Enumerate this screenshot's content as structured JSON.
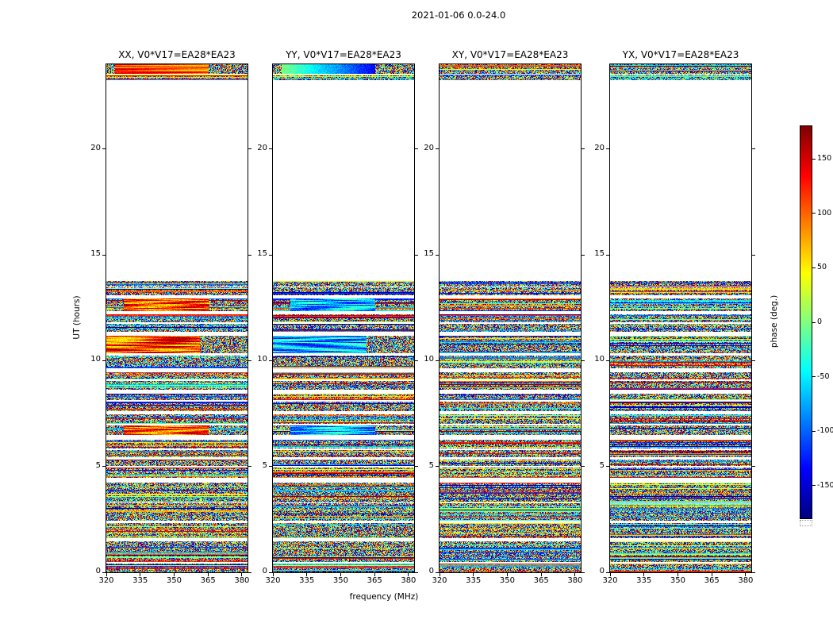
{
  "figure": {
    "title": "2021-01-06 0.0-24.0"
  },
  "axes": {
    "xlabel": "frequency (MHz)",
    "ylabel": "UT (hours)",
    "x_ticks": [
      320,
      335,
      350,
      365,
      380
    ],
    "y_ticks": [
      0,
      5,
      10,
      15,
      20
    ],
    "x_range": [
      320,
      382.5
    ],
    "y_range": [
      0,
      24
    ]
  },
  "colorbar": {
    "label": "phase (deg.)",
    "range": [
      -180,
      180
    ],
    "ticks": [
      -150,
      -100,
      -50,
      0,
      50,
      100,
      150
    ],
    "colormap": "jet"
  },
  "panels": [
    {
      "title": "XX, V0*V17=EA28*EA23",
      "pol": "XX",
      "bias": 0.8,
      "seed": 1
    },
    {
      "title": "YY, V0*V17=EA28*EA23",
      "pol": "YY",
      "bias": 0.3,
      "seed": 2
    },
    {
      "title": "XY, V0*V17=EA28*EA23",
      "pol": "XY",
      "bias": null,
      "seed": 3
    },
    {
      "title": "YX, V0*V17=EA28*EA23",
      "pol": "YX",
      "bias": null,
      "seed": 4
    }
  ],
  "chart_data": {
    "type": "heatmap",
    "title": "2021-01-06 0.0-24.0",
    "xlabel": "frequency (MHz)",
    "ylabel": "UT (hours)",
    "x_range": [
      320,
      382.5
    ],
    "y_range": [
      0,
      24
    ],
    "x_ticks": [
      320,
      335,
      350,
      365,
      380
    ],
    "y_ticks": [
      0,
      5,
      10,
      15,
      20
    ],
    "panels": [
      "XX, V0*V17=EA28*EA23",
      "YY, V0*V17=EA28*EA23",
      "XY, V0*V17=EA28*EA23",
      "YX, V0*V17=EA28*EA23"
    ],
    "colorbar": {
      "label": "phase (deg.)",
      "min": -180,
      "max": 180,
      "ticks": [
        -150,
        -100,
        -50,
        0,
        50,
        100,
        150
      ],
      "colormap": "jet"
    },
    "value_description": "Interferometric visibility phase (deg.) versus frequency (MHz) and UT (hours) for baseline V0*V17=EA28*EA23 on 2021-01-06; scans of noisy phase between UT 0-13.8 and UT 23.2-24, blank (no data) elsewhere. XX shows a smooth red phase patch near UT 10.4-11.2 and near the top band; YY shows a smooth blue/cyan patch at the same times.",
    "time_bands": [
      [
        0.0,
        0.42,
        "noise"
      ],
      [
        0.48,
        1.45,
        "noise"
      ],
      [
        1.62,
        2.32,
        "noise"
      ],
      [
        2.45,
        3.25,
        "noise"
      ],
      [
        3.3,
        4.25,
        "noise"
      ],
      [
        4.45,
        4.95,
        "noise"
      ],
      [
        5.02,
        5.32,
        "noise"
      ],
      [
        5.45,
        5.78,
        "noise"
      ],
      [
        5.85,
        6.28,
        "noise"
      ],
      [
        6.5,
        6.95,
        "feature2"
      ],
      [
        7.02,
        7.45,
        "noise"
      ],
      [
        7.6,
        8.05,
        "noise"
      ],
      [
        8.12,
        8.42,
        "noise"
      ],
      [
        8.62,
        9.05,
        "noise"
      ],
      [
        9.12,
        9.45,
        "noise"
      ],
      [
        9.65,
        10.25,
        "noise"
      ],
      [
        10.35,
        11.18,
        "feature"
      ],
      [
        11.35,
        11.75,
        "noise"
      ],
      [
        11.82,
        12.18,
        "noise"
      ],
      [
        12.35,
        12.95,
        "feature2"
      ],
      [
        13.1,
        13.45,
        "noise"
      ],
      [
        13.5,
        13.78,
        "noise"
      ],
      [
        23.25,
        23.5,
        "noise"
      ],
      [
        23.56,
        24.0,
        "topfeature"
      ]
    ]
  }
}
